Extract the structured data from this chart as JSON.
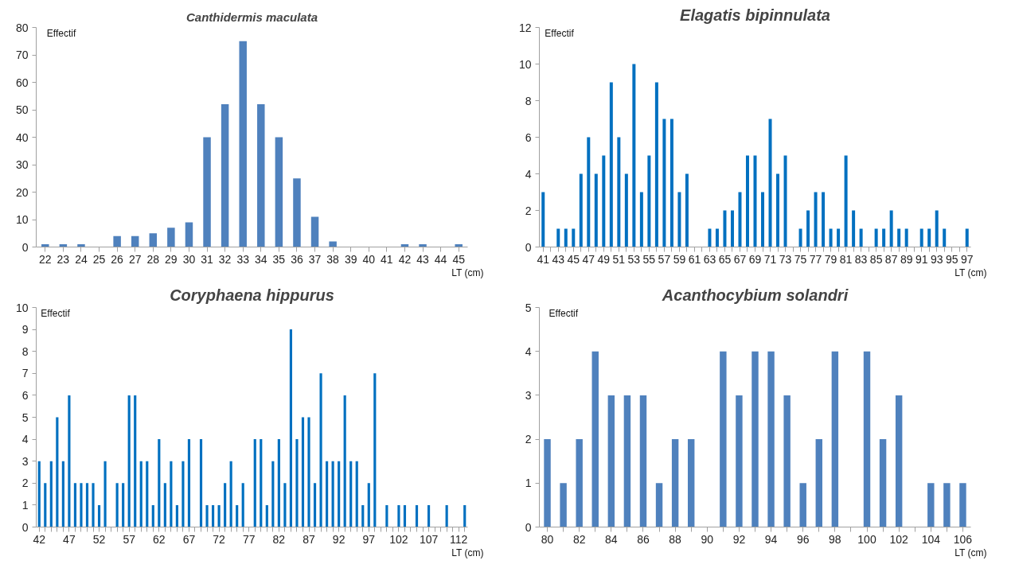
{
  "chart_data": [
    {
      "type": "bar",
      "title": "Canthidermis maculata",
      "xlabel": "LT (cm)",
      "ylabel": "Effectif",
      "color": "#4f81bd",
      "ylim": [
        0,
        80
      ],
      "yticks": [
        0,
        10,
        20,
        30,
        40,
        50,
        60,
        70,
        80
      ],
      "categories": [
        "22",
        "23",
        "24",
        "25",
        "26",
        "27",
        "28",
        "29",
        "30",
        "31",
        "32",
        "33",
        "34",
        "35",
        "36",
        "37",
        "38",
        "39",
        "40",
        "41",
        "42",
        "43",
        "44",
        "45"
      ],
      "values": [
        1,
        1,
        1,
        0,
        4,
        4,
        5,
        7,
        9,
        40,
        52,
        75,
        52,
        40,
        25,
        11,
        2,
        0,
        0,
        0,
        1,
        1,
        0,
        1
      ]
    },
    {
      "type": "bar",
      "title": "Elagatis bipinnulata",
      "xlabel": "LT (cm)",
      "ylabel": "Effectif",
      "color": "#0070c0",
      "ylim": [
        0,
        12
      ],
      "yticks": [
        0,
        2,
        4,
        6,
        8,
        10,
        12
      ],
      "categories": [
        "41",
        null,
        "43",
        null,
        "45",
        null,
        "47",
        null,
        "49",
        null,
        "51",
        null,
        "53",
        null,
        "55",
        null,
        "57",
        null,
        "59",
        null,
        "61",
        null,
        "63",
        null,
        "65",
        null,
        "67",
        null,
        "69",
        null,
        "71",
        null,
        "73",
        null,
        "75",
        null,
        "77",
        null,
        "79",
        null,
        "81",
        null,
        "83",
        null,
        "85",
        null,
        "87",
        null,
        "89",
        null,
        "91",
        null,
        "93",
        null,
        "95",
        null,
        "97"
      ],
      "values": [
        3,
        0,
        1,
        1,
        1,
        4,
        6,
        4,
        5,
        9,
        6,
        4,
        10,
        3,
        5,
        9,
        7,
        7,
        3,
        4,
        0,
        0,
        1,
        1,
        2,
        2,
        3,
        5,
        5,
        3,
        7,
        4,
        5,
        0,
        1,
        2,
        3,
        3,
        1,
        1,
        5,
        2,
        1,
        0,
        1,
        1,
        2,
        1,
        1,
        0,
        1,
        1,
        2,
        1,
        0,
        0,
        1
      ]
    },
    {
      "type": "bar",
      "title": "Coryphaena hippurus",
      "xlabel": "LT (cm)",
      "ylabel": "Effectif",
      "color": "#0070c0",
      "ylim": [
        0,
        10
      ],
      "yticks": [
        0,
        1,
        2,
        3,
        4,
        5,
        6,
        7,
        8,
        9,
        10
      ],
      "categories": [
        "42",
        null,
        null,
        null,
        null,
        "47",
        null,
        null,
        null,
        null,
        "52",
        null,
        null,
        null,
        null,
        "57",
        null,
        null,
        null,
        null,
        "62",
        null,
        null,
        null,
        null,
        "67",
        null,
        null,
        null,
        null,
        "72",
        null,
        null,
        null,
        null,
        "77",
        null,
        null,
        null,
        null,
        "82",
        null,
        null,
        null,
        null,
        "87",
        null,
        null,
        null,
        null,
        "92",
        null,
        null,
        null,
        null,
        "97",
        null,
        null,
        null,
        null,
        "102",
        null,
        null,
        null,
        null,
        "107",
        null,
        null,
        null,
        null,
        "112",
        null
      ],
      "values": [
        3,
        2,
        3,
        5,
        3,
        6,
        2,
        2,
        2,
        2,
        1,
        3,
        0,
        2,
        2,
        6,
        6,
        3,
        3,
        1,
        4,
        2,
        3,
        1,
        3,
        4,
        0,
        4,
        1,
        1,
        1,
        2,
        3,
        1,
        2,
        0,
        4,
        4,
        1,
        3,
        4,
        2,
        9,
        4,
        5,
        5,
        2,
        7,
        3,
        3,
        3,
        6,
        3,
        3,
        1,
        2,
        7,
        0,
        1,
        0,
        1,
        1,
        0,
        1,
        0,
        1,
        0,
        0,
        1,
        0,
        0,
        1
      ]
    },
    {
      "type": "bar",
      "title": "Acanthocybium solandri",
      "xlabel": "LT (cm)",
      "ylabel": "Effectif",
      "color": "#4f81bd",
      "ylim": [
        0,
        5
      ],
      "yticks": [
        0,
        1,
        2,
        3,
        4,
        5
      ],
      "categories": [
        "80",
        null,
        "82",
        null,
        "84",
        null,
        "86",
        null,
        "88",
        null,
        "90",
        null,
        "92",
        null,
        "94",
        null,
        "96",
        null,
        "98",
        null,
        "100",
        null,
        "102",
        null,
        "104",
        null,
        "106"
      ],
      "values": [
        2,
        1,
        2,
        4,
        3,
        3,
        3,
        1,
        2,
        2,
        0,
        4,
        3,
        4,
        4,
        3,
        1,
        2,
        4,
        0,
        4,
        2,
        3,
        0,
        1,
        1,
        1
      ]
    }
  ]
}
